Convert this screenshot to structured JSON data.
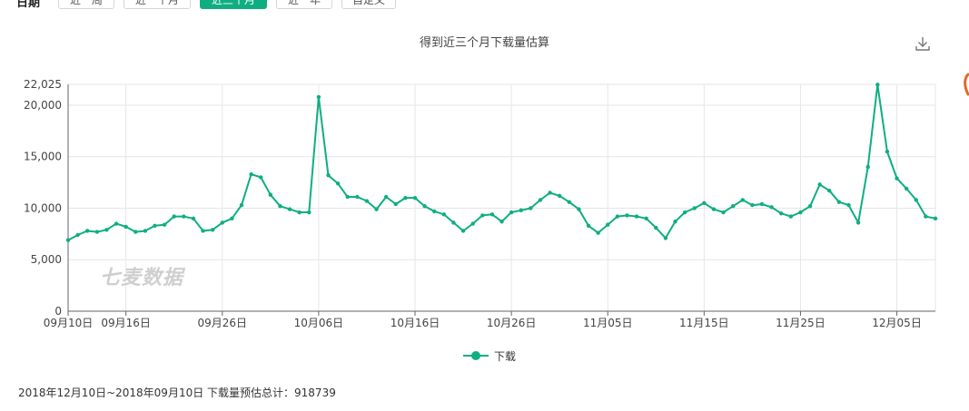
{
  "toolbar": {
    "label": "日期",
    "buttons": [
      {
        "label": "近一周",
        "active": false
      },
      {
        "label": "近一个月",
        "active": false
      },
      {
        "label": "近三个月",
        "active": true
      },
      {
        "label": "近一年",
        "active": false
      },
      {
        "label": "自定义",
        "active": false
      }
    ]
  },
  "watermark": "七麦数据",
  "download_icon": "download-icon",
  "footer": "2018年12月10日~2018年09月10日 下载量预估总计：918739",
  "colors": {
    "series": "#0fae82",
    "grid": "#e6e6e6",
    "axis": "#666666"
  },
  "chart_data": {
    "type": "line",
    "title": "得到近三个月下载量估算",
    "legend": "bottom-center",
    "grid": true,
    "start_date": "2018-09-10",
    "x_tick_labels": [
      "09月10日",
      "09月16日",
      "09月26日",
      "10月06日",
      "10月16日",
      "10月26日",
      "11月05日",
      "11月15日",
      "11月25日",
      "12月05日"
    ],
    "x_tick_indices": [
      0,
      6,
      16,
      26,
      36,
      46,
      56,
      66,
      76,
      86
    ],
    "y_ticks": [
      0,
      5000,
      10000,
      15000,
      20000,
      22025
    ],
    "y_tick_labels": [
      "0",
      "5,000",
      "10,000",
      "15,000",
      "20,000",
      "22,025"
    ],
    "ylim": [
      0,
      22025
    ],
    "series": [
      {
        "name": "下载",
        "values": [
          6900,
          7400,
          7800,
          7700,
          7900,
          8500,
          8200,
          7700,
          7800,
          8300,
          8400,
          9200,
          9200,
          9000,
          7800,
          7900,
          8600,
          9000,
          10300,
          13300,
          13000,
          11300,
          10200,
          9900,
          9600,
          9600,
          20800,
          13200,
          12400,
          11100,
          11100,
          10700,
          9900,
          11100,
          10400,
          11000,
          11000,
          10200,
          9700,
          9400,
          8600,
          7800,
          8500,
          9300,
          9400,
          8700,
          9600,
          9800,
          10000,
          10800,
          11500,
          11200,
          10600,
          9900,
          8300,
          7600,
          8400,
          9200,
          9300,
          9200,
          9000,
          8100,
          7100,
          8700,
          9600,
          10000,
          10500,
          9900,
          9600,
          10200,
          10800,
          10300,
          10400,
          10100,
          9500,
          9200,
          9600,
          10200,
          12300,
          11700,
          10600,
          10300,
          8600,
          14000,
          22000,
          15500,
          12900,
          11900,
          10800,
          9200,
          9000
        ]
      }
    ]
  }
}
